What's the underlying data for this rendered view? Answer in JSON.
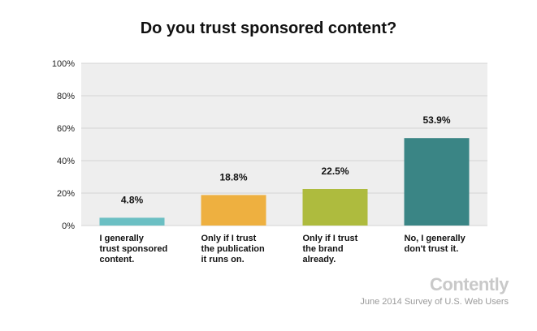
{
  "chart_data": {
    "type": "bar",
    "title": "Do you trust sponsored content?",
    "categories": [
      "I generally trust sponsored content.",
      "Only if I trust the publication it runs on.",
      "Only if I trust the brand already.",
      "No, I generally don't trust it."
    ],
    "category_lines": [
      [
        "I generally",
        "trust sponsored",
        "content."
      ],
      [
        "Only if I trust",
        "the publication",
        "it runs on."
      ],
      [
        "Only if I trust",
        "the brand",
        "already."
      ],
      [
        "No, I generally",
        "don't trust it."
      ]
    ],
    "values": [
      4.8,
      18.8,
      22.5,
      53.9
    ],
    "value_labels": [
      "4.8%",
      "18.8%",
      "22.5%",
      "53.9%"
    ],
    "colors": [
      "#6bbfc3",
      "#eeb040",
      "#aebb3e",
      "#3a8585"
    ],
    "ylim": [
      0,
      100
    ],
    "yticks": [
      0,
      20,
      40,
      60,
      80,
      100
    ],
    "ytick_labels": [
      "0%",
      "20%",
      "40%",
      "60%",
      "80%",
      "100%"
    ],
    "xlabel": "",
    "ylabel": "",
    "grid": true,
    "legend": "none"
  },
  "brand": "Contently",
  "source": "June 2014 Survey of U.S. Web Users"
}
